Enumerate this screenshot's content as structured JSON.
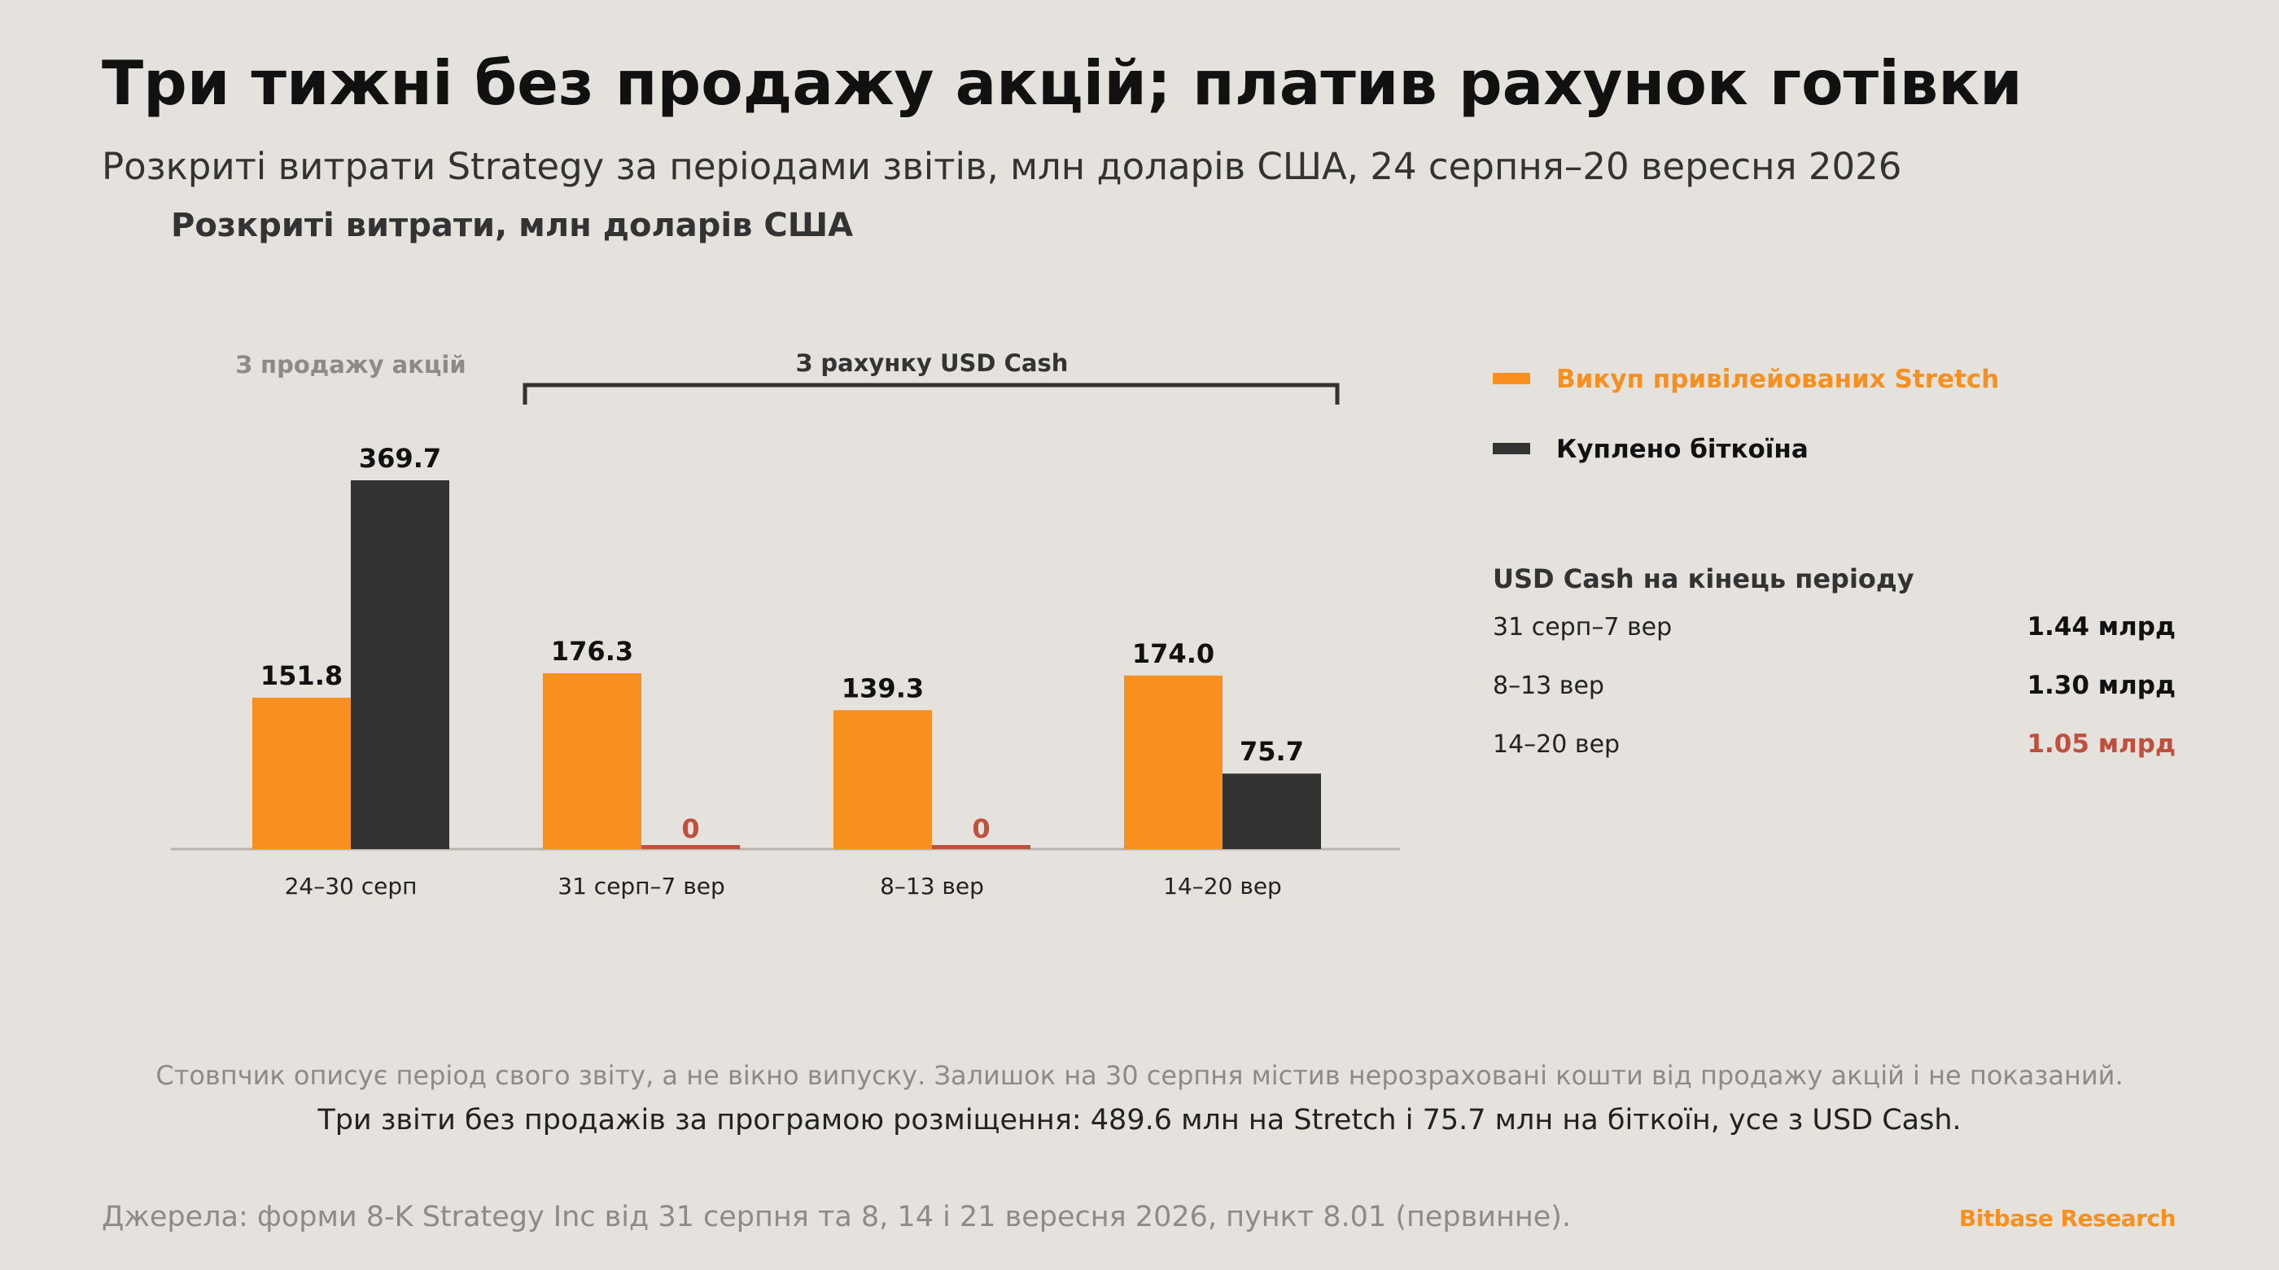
{
  "title": "Три тижні без продажу акцій; платив рахунок готівки",
  "subtitle": "Розкриті витрати Strategy за періодами звітів, млн доларів США, 24 серпня–20 вересня 2026",
  "chart_data": {
    "type": "bar",
    "title": "Розкриті витрати, млн доларів США",
    "ylabel": "Розкриті витрати, млн доларів США",
    "ylim": [
      0,
      380
    ],
    "grid": false,
    "categories": [
      "24–30 серп",
      "31 серп–7 вер",
      "8–13 вер",
      "14–20 вер"
    ],
    "series": [
      {
        "name": "Викуп привілейованих Stretch",
        "values": [
          151.8,
          176.3,
          139.3,
          174.0
        ],
        "labels": [
          "151.8",
          "176.3",
          "139.3",
          "174.0"
        ],
        "color": "#f7901e"
      },
      {
        "name": "Куплено біткоїна",
        "values": [
          369.7,
          0,
          0,
          75.7
        ],
        "labels": [
          "369.7",
          "0",
          "0",
          "75.7"
        ],
        "color": "#333333",
        "zero_color": "#c0503e"
      }
    ],
    "annotations": [
      {
        "text": "З продажу акцій",
        "categories": [
          0
        ],
        "color": "#8e8a86"
      },
      {
        "text": "З рахунку USD Cash",
        "categories": [
          1,
          2,
          3
        ],
        "color": "#333333",
        "bracket": true
      }
    ],
    "legend_position": "right"
  },
  "cash_panel": {
    "title": "USD Cash на кінець періоду",
    "rows": [
      {
        "period": "31 серп–7 вер",
        "value": "1.44 млрд",
        "color": "#111111"
      },
      {
        "period": "8–13 вер",
        "value": "1.30 млрд",
        "color": "#111111"
      },
      {
        "period": "14–20 вер",
        "value": "1.05 млрд",
        "color": "#c0503e"
      }
    ]
  },
  "notes": {
    "line1": "Стовпчик описує період свого звіту, а не вікно випуску. Залишок на 30 серпня містив нерозраховані кошти від продажу акцій і не показаний.",
    "line2": "Три звіти без продажів за програмою розміщення: 489.6 млн на Stretch і 75.7 млн на біткоїн, усе з USD Cash."
  },
  "source": "Джерела: форми 8-K Strategy Inc від 31 серпня та 8, 14 і 21 вересня 2026, пункт 8.01 (первинне).",
  "brand": "Bitbase Research",
  "colors": {
    "background": "#e5e1dc",
    "stretch": "#f7901e",
    "bitcoin": "#333333",
    "alert": "#c0503e",
    "muted": "#8e8a86"
  }
}
